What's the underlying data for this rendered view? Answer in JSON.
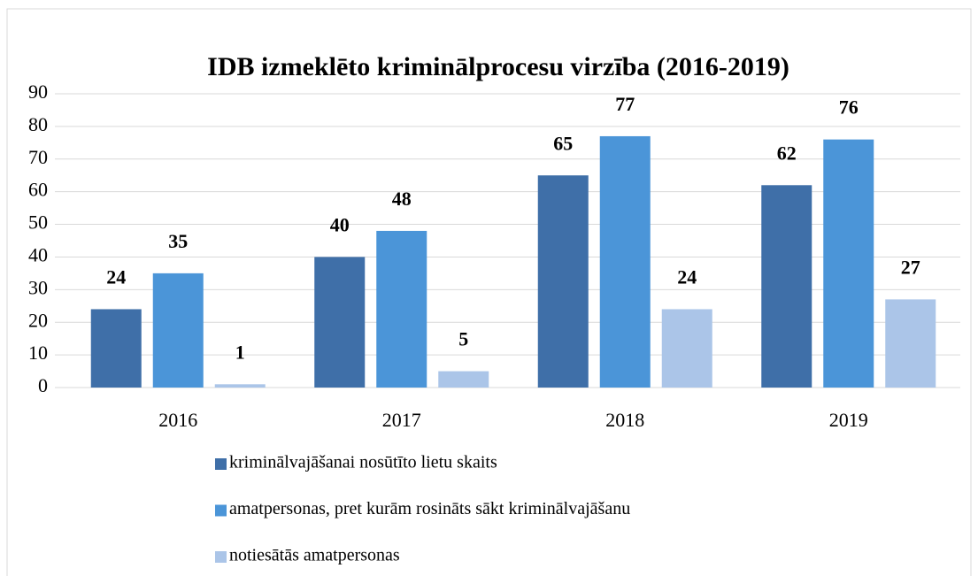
{
  "chart_data": {
    "type": "bar",
    "title": "IDB izmeklēto kriminālprocesu virzība (2016-2019)",
    "categories": [
      "2016",
      "2017",
      "2018",
      "2019"
    ],
    "series": [
      {
        "name": "kriminālvajāšanai nosūtīto lietu skaits",
        "color": "#3f6fa8",
        "values": [
          24,
          40,
          65,
          62
        ]
      },
      {
        "name": "amatpersonas, pret kurām rosināts sākt kriminālvajāšanu",
        "color": "#4b95d8",
        "values": [
          35,
          48,
          77,
          76
        ]
      },
      {
        "name": "notiesātās amatpersonas",
        "color": "#abc5e8",
        "values": [
          1,
          5,
          24,
          27
        ]
      }
    ],
    "ylim": [
      0,
      90
    ],
    "yticks": [
      0,
      10,
      20,
      30,
      40,
      50,
      60,
      70,
      80,
      90
    ],
    "grid": true,
    "legend": "bottom"
  }
}
